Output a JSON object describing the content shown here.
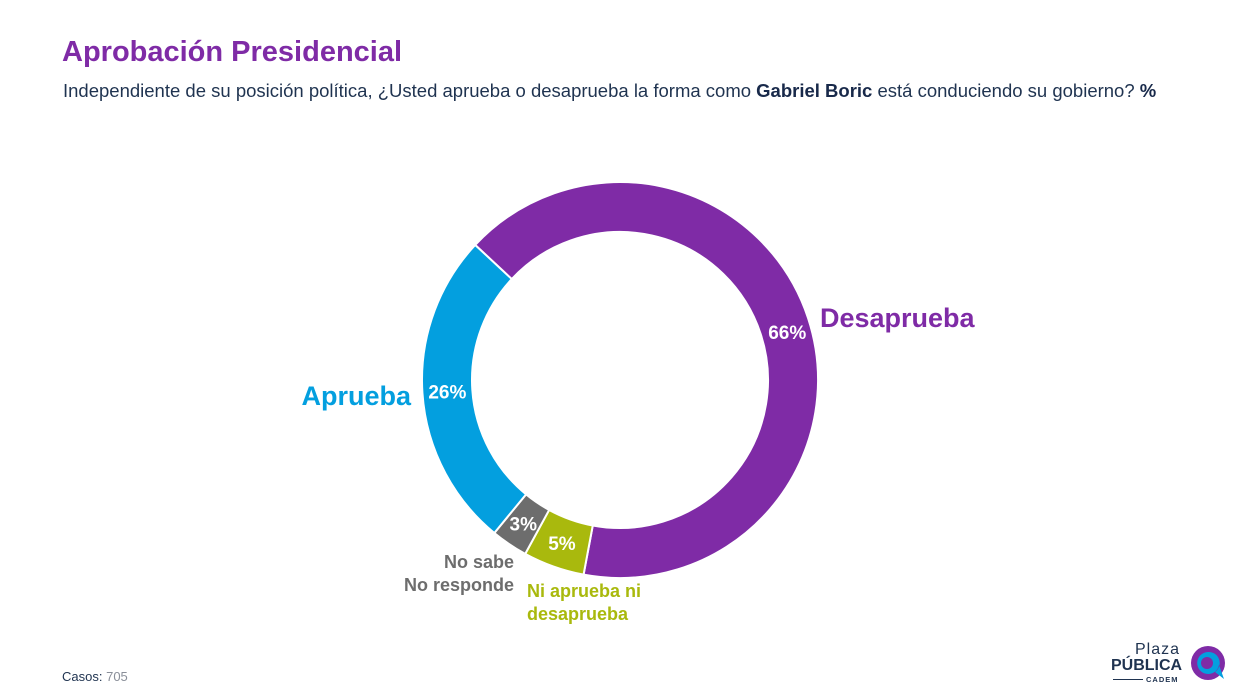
{
  "title": "Aprobación Presidencial",
  "subtitle": {
    "pre": "Independiente de su posición política, ¿Usted aprueba o desaprueba la forma como ",
    "bold_name": "Gabriel Boric",
    "post": " está conduciendo su gobierno? ",
    "bold_unit": "%"
  },
  "chart_data": {
    "type": "pie",
    "variant": "donut",
    "slices": [
      {
        "label": "Desaprueba",
        "label_lines": [
          "Desaprueba"
        ],
        "value": 66,
        "value_label": "66%",
        "color": "#7f2ba6"
      },
      {
        "label": "Ni aprueba ni desaprueba",
        "label_lines": [
          "Ni aprueba ni",
          "desaprueba"
        ],
        "value": 5,
        "value_label": "5%",
        "color": "#a9b90d"
      },
      {
        "label": "No sabe No responde",
        "label_lines": [
          "No sabe",
          "No responde"
        ],
        "value": 3,
        "value_label": "3%",
        "color": "#6d6d6d"
      },
      {
        "label": "Aprueba",
        "label_lines": [
          "Aprueba"
        ],
        "value": 26,
        "value_label": "26%",
        "color": "#039fdf"
      }
    ]
  },
  "footer": {
    "cases_label": "Casos",
    "cases_value": "705"
  },
  "logo": {
    "line1": "Plaza",
    "line2": "PÚBLICA",
    "line3": "CADEM",
    "colors": [
      "#7f2ba6",
      "#039fdf"
    ]
  }
}
